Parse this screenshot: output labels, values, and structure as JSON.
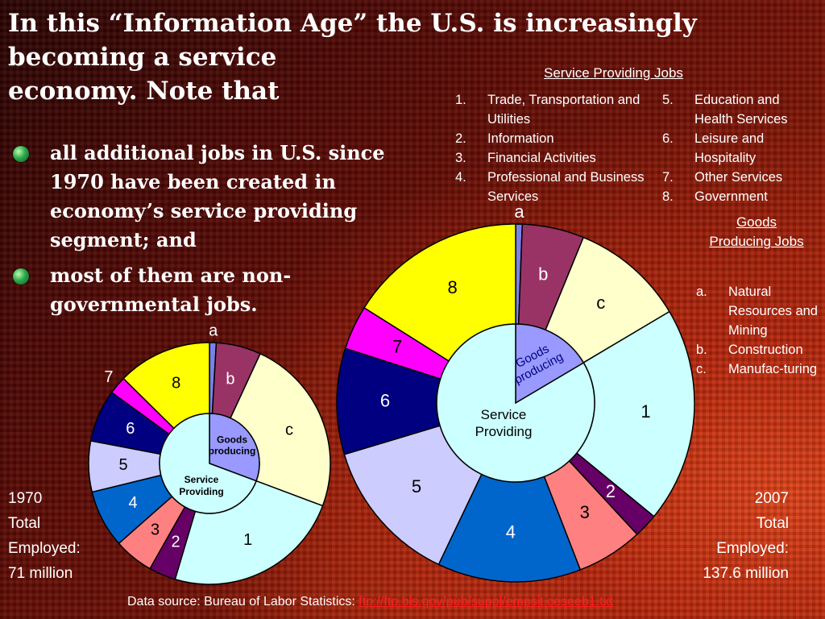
{
  "title": {
    "line1": "In this “Information Age” the U.S. is increasingly",
    "line2": "becoming a service",
    "line3": "economy. Note that"
  },
  "bullets": [
    {
      "icon": "globe-icon",
      "text": "all additional jobs in U.S. since 1970 have been created in economy’s service providing segment; and"
    },
    {
      "icon": "globe-icon",
      "text": "most of them are non-governmental jobs."
    }
  ],
  "legend": {
    "service_title": "Service Providing Jobs",
    "service_items_left": [
      {
        "num": "1.",
        "label": "Trade, Transportation and Utilities"
      },
      {
        "num": "2.",
        "label": "Information"
      },
      {
        "num": "3.",
        "label": "Financial Activities"
      },
      {
        "num": "4.",
        "label": "Professional and Business Services"
      }
    ],
    "service_items_right": [
      {
        "num": "5.",
        "label": "Education and Health Services"
      },
      {
        "num": "6.",
        "label": "Leisure and Hospitality"
      },
      {
        "num": "7.",
        "label": "Other Services"
      },
      {
        "num": "8.",
        "label": "Government"
      }
    ],
    "goods_title": "Goods Producing Jobs",
    "goods_items": [
      {
        "num": "a.",
        "label": "Natural Resources and Mining"
      },
      {
        "num": "b.",
        "label": "Construction"
      },
      {
        "num": "c.",
        "label": "Manufac-turing"
      }
    ]
  },
  "totals": {
    "left": {
      "year": "1970",
      "line2": "Total",
      "line3": "Employed:",
      "line4": "71 million"
    },
    "right": {
      "year": "2007",
      "line2": "Total",
      "line3": "Employed:",
      "line4": "137.6 million"
    }
  },
  "source": {
    "prefix": "Data source: Bureau of Labor Statistics: ",
    "link": "ftp://ftp.bls.gov/pub/suppl/empsit.ceseeb1.txt"
  },
  "colors": {
    "a": "#7a82e6",
    "b": "#993366",
    "c": "#ffffcc",
    "1": "#ccffff",
    "2": "#660066",
    "3": "#ff8080",
    "4": "#0066cc",
    "5": "#ccccff",
    "6": "#000080",
    "7": "#ff00ff",
    "8": "#ffff00",
    "inner_goods": "#9999ff",
    "inner_service": "#ccffff"
  },
  "chart_data": [
    {
      "type": "pie",
      "year": "1970",
      "center_labels": {
        "goods": "Goods producing",
        "service": "Service Providing"
      },
      "outer": {
        "categories": [
          "a",
          "b",
          "c",
          "1",
          "2",
          "3",
          "4",
          "5",
          "6",
          "7",
          "8"
        ],
        "values": [
          0.9,
          6.0,
          23.8,
          23.9,
          3.6,
          5.3,
          7.7,
          6.8,
          7.0,
          2.4,
          12.6
        ]
      },
      "inner": {
        "categories": [
          "Goods producing",
          "Service Providing"
        ],
        "values": [
          30.7,
          69.3
        ]
      }
    },
    {
      "type": "pie",
      "year": "2007",
      "center_labels": {
        "goods": "Goods producing",
        "service": "Service Providing"
      },
      "outer": {
        "categories": [
          "a",
          "b",
          "c",
          "1",
          "2",
          "3",
          "4",
          "5",
          "6",
          "7",
          "8"
        ],
        "values": [
          0.6,
          5.6,
          10.3,
          19.5,
          2.2,
          6.0,
          13.0,
          13.3,
          9.6,
          4.0,
          16.1
        ]
      },
      "inner": {
        "categories": [
          "Goods producing",
          "Service Providing"
        ],
        "values": [
          16.5,
          83.5
        ]
      }
    }
  ]
}
